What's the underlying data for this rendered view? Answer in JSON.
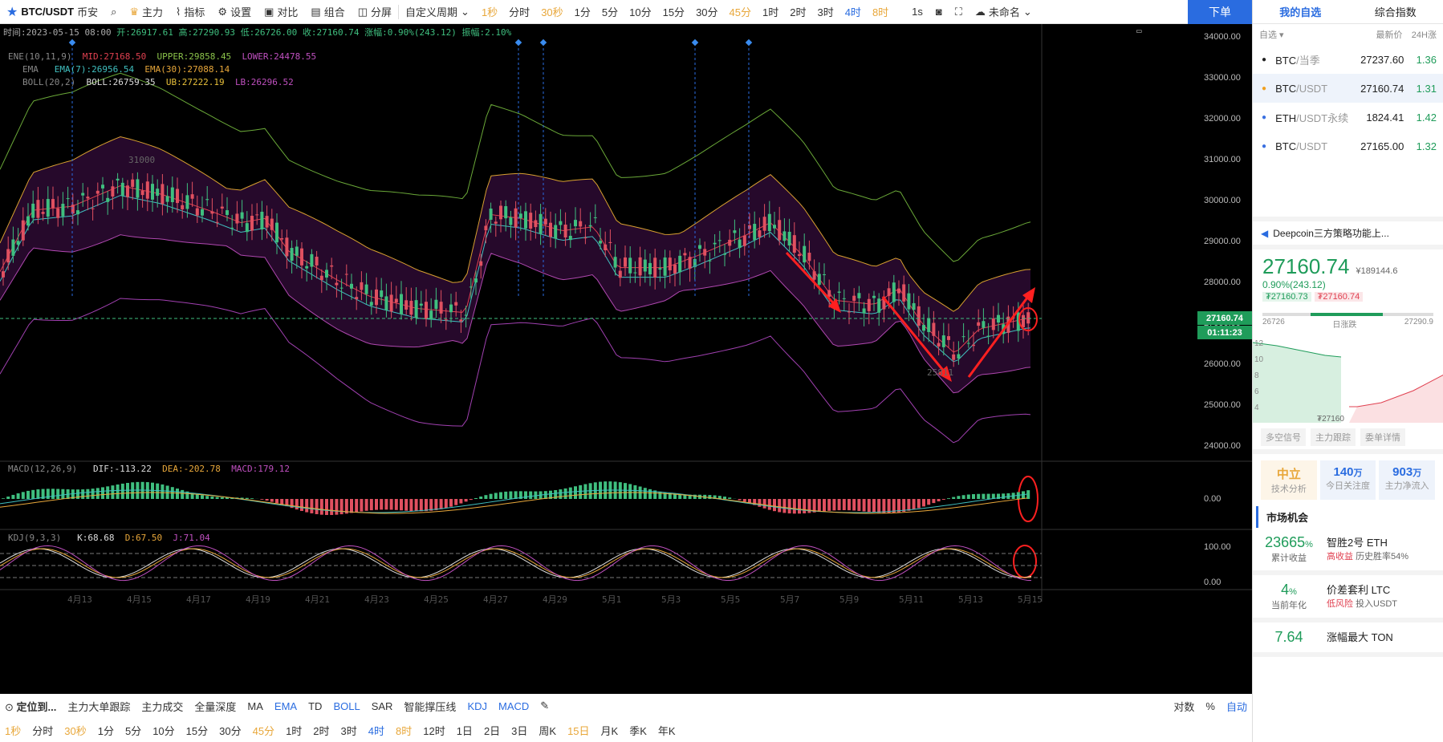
{
  "toolbar": {
    "symbol": "BTC/USDT",
    "exchange": "币安",
    "main_force": "主力",
    "indicators": "指标",
    "settings": "设置",
    "compare": "对比",
    "combine": "组合",
    "split": "分屏",
    "custom_period": "自定义周期",
    "periods": [
      {
        "label": "1秒",
        "style": "hl"
      },
      {
        "label": "分时",
        "style": ""
      },
      {
        "label": "30秒",
        "style": "hl"
      },
      {
        "label": "1分",
        "style": ""
      },
      {
        "label": "5分",
        "style": ""
      },
      {
        "label": "10分",
        "style": ""
      },
      {
        "label": "15分",
        "style": ""
      },
      {
        "label": "30分",
        "style": ""
      },
      {
        "label": "45分",
        "style": "hl"
      },
      {
        "label": "1时",
        "style": ""
      },
      {
        "label": "2时",
        "style": ""
      },
      {
        "label": "3时",
        "style": ""
      },
      {
        "label": "4时",
        "style": "active"
      },
      {
        "label": "8时",
        "style": "hl"
      }
    ],
    "interval": "1s",
    "unnamed": "未命名",
    "order_button": "下单"
  },
  "ohlc_legend": {
    "time": "时间:2023-05-15 08:00",
    "open": "开:26917.61",
    "high": "高:27290.93",
    "low": "低:26726.00",
    "close": "收:27160.74",
    "change": "涨幅:0.90%(243.12)",
    "amplitude": "振幅:2.10%"
  },
  "indicator_legend": {
    "ene_name": "ENE(10,11,9)",
    "ene_mid": "MID:27168.50",
    "ene_upper": "UPPER:29858.45",
    "ene_lower": "LOWER:24478.55",
    "ema_name": "EMA",
    "ema7": "EMA(7):26956.54",
    "ema30": "EMA(30):27088.14",
    "boll_name": "BOLL(20,2)",
    "boll": "BOLL:26759.35",
    "ub": "UB:27222.19",
    "lb": "LB:26296.52"
  },
  "macd_legend": {
    "name": "MACD(12,26,9)",
    "dif": "DIF:-113.22",
    "dea": "DEA:-202.78",
    "macd": "MACD:179.12"
  },
  "kdj_legend": {
    "name": "KDJ(9,3,3)",
    "k": "K:68.68",
    "d": "D:67.50",
    "j": "J:71.04"
  },
  "y_axis": [
    "34000.00",
    "33000.00",
    "32000.00",
    "31000.00",
    "30000.00",
    "29000.00",
    "28000.00",
    "27000.00",
    "26000.00",
    "25000.00",
    "24000.00"
  ],
  "current_price_tag": "27160.74",
  "countdown_tag": "01:11:23",
  "macd_axis": "0.00",
  "kdj_axis": [
    "100.00",
    "0.00"
  ],
  "chart_marks": {
    "high_label": "31000",
    "low_label": "25811"
  },
  "x_axis": [
    "4月13",
    "4月15",
    "4月17",
    "4月19",
    "4月21",
    "4月23",
    "4月25",
    "4月27",
    "4月29",
    "5月1",
    "5月3",
    "5月5",
    "5月7",
    "5月9",
    "5月11",
    "5月13",
    "5月15"
  ],
  "bottom_toolbar": {
    "locate": "定位到...",
    "tools": [
      "主力大单跟踪",
      "主力成交",
      "全量深度",
      "MA",
      "EMA",
      "TD",
      "BOLL",
      "SAR",
      "智能撑压线",
      "KDJ",
      "MACD"
    ],
    "right_tools": [
      "对数",
      "%",
      "自动"
    ],
    "periods": [
      "1秒",
      "分时",
      "30秒",
      "1分",
      "5分",
      "10分",
      "15分",
      "30分",
      "45分",
      "1时",
      "2时",
      "3时",
      "4时",
      "8时",
      "12时",
      "1日",
      "2日",
      "3日",
      "周K",
      "15日",
      "月K",
      "季K",
      "年K"
    ]
  },
  "right_panel": {
    "tabs": [
      "我的自选",
      "综合指数"
    ],
    "watchlist_head": {
      "group": "自选",
      "price": "最新价",
      "change": "24H涨"
    },
    "watchlist": [
      {
        "name": "BTC",
        "sub": "/当季",
        "price": "27237.60",
        "change": "1.36"
      },
      {
        "name": "BTC",
        "sub": "/USDT",
        "price": "27160.74",
        "change": "1.31"
      },
      {
        "name": "ETH",
        "sub": "/USDT永续",
        "price": "1824.41",
        "change": "1.42"
      },
      {
        "name": "BTC",
        "sub": "/USDT",
        "price": "27165.00",
        "change": "1.32"
      }
    ],
    "notice": "Deepcoin三方策略功能上...",
    "big_price": "27160.74",
    "big_price_cny": "¥189144.6",
    "change": "0.90%(243.12)",
    "bid_tag": "₮27160.73",
    "ask_tag": "₮27160.74",
    "range_low": "26726",
    "range_label": "日涨跌",
    "range_high": "27290.9",
    "mini_axis": [
      "12",
      "10",
      "8",
      "6",
      "4"
    ],
    "mini_price": "₮27160",
    "tabs2": [
      "多空信号",
      "主力跟踪",
      "委单详情"
    ],
    "stats": [
      {
        "value": "中立",
        "label": "技术分析"
      },
      {
        "value": "140",
        "unit": "万",
        "label": "今日关注度"
      },
      {
        "value": "903",
        "unit": "万",
        "label": "主力净流入"
      }
    ],
    "market_title": "市场机会",
    "opportunities": [
      {
        "big": "23665",
        "unit": "%",
        "desc1": "累计收益",
        "name": "智胜2号 ETH",
        "tag": "高收益",
        "meta": "历史胜率54%"
      },
      {
        "big": "4",
        "unit": "%",
        "desc1": "当前年化",
        "name": "价差套利 LTC",
        "tag": "低风险",
        "meta": "投入USDT"
      },
      {
        "big": "7.64",
        "unit": "",
        "desc1": "",
        "name": "涨幅最大 TON",
        "tag": "",
        "meta": ""
      }
    ]
  },
  "colors": {
    "up": "#1f9c5a",
    "down": "#e04050",
    "accent": "#2a6ce0",
    "highlight": "#e8a73a"
  }
}
